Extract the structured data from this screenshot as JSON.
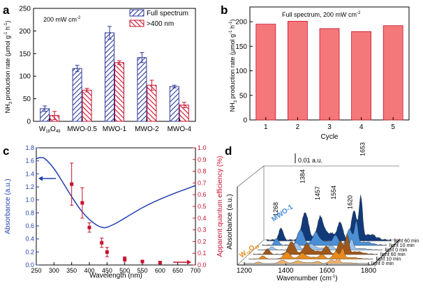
{
  "colors": {
    "blue": "#2b3a9c",
    "red": "#c8102e",
    "bar_salmon": "#f4787a",
    "curve_blue": "#1f3fb0",
    "orange": "#e98a1c",
    "brown": "#a0581a",
    "navy": "#123a7a",
    "lightblue": "#4a8fd6"
  },
  "chart_data": [
    {
      "panel": "a",
      "type": "bar",
      "categories": [
        "W18O49",
        "MWO-0.5",
        "MWO-1",
        "MWO-2",
        "MWO-4"
      ],
      "category_labels": [
        {
          "main": "W",
          "sub1": "18",
          "mid": "O",
          "sub2": "49"
        },
        {
          "main": "MWO-0.5"
        },
        {
          "main": "MWO-1"
        },
        {
          "main": "MWO-2"
        },
        {
          "main": "MWO-4"
        }
      ],
      "series": [
        {
          "name": "Full spectrum",
          "values": [
            28,
            117,
            196,
            141,
            77
          ],
          "errors": [
            6,
            7,
            14,
            11,
            3
          ]
        },
        {
          "name": ">400 nm",
          "values": [
            13,
            69,
            130,
            80,
            36
          ],
          "errors": [
            9,
            4,
            4,
            11,
            6
          ]
        }
      ],
      "annotation": "200 mW cm",
      "annotation_sup": "-2",
      "ylabel": "NH",
      "ylabel_sub": "3",
      "ylabel_rest": " production rate (μmol g",
      "ylabel_sup1": "-1",
      "ylabel_mid": " h",
      "ylabel_sup2": "-1",
      "ylabel_end": ")",
      "ylim": [
        0,
        250
      ],
      "yticks": [
        "0",
        "50",
        "100",
        "150",
        "200",
        "250"
      ]
    },
    {
      "panel": "b",
      "type": "bar",
      "categories": [
        "1",
        "2",
        "3",
        "4",
        "5"
      ],
      "values": [
        195,
        201,
        186,
        180,
        192
      ],
      "annotation": "Full spectrum, 200 mW cm",
      "annotation_sup": "-2",
      "xlabel": "Cycle",
      "ylabel": "NH",
      "ylabel_sub": "3",
      "ylabel_rest": " production rate (μmol g",
      "ylabel_sup1": "-1",
      "ylabel_mid": " h",
      "ylabel_sup2": "-1",
      "ylabel_end": ")",
      "ylim": [
        0,
        230
      ],
      "yticks": [
        "0",
        "50",
        "100",
        "150",
        "200"
      ]
    },
    {
      "panel": "c",
      "type": "line+scatter",
      "xlabel": "Wavelength (nm)",
      "ylabel_left": "Absorbance (a.u.)",
      "ylabel_right": "Apparent quantum efficiency (%)",
      "xlim": [
        250,
        700
      ],
      "ylim_left": [
        0,
        1.8
      ],
      "ylim_right": [
        0,
        1.0
      ],
      "xticks": [
        "250",
        "300",
        "350",
        "400",
        "450",
        "500",
        "550",
        "600",
        "650",
        "700"
      ],
      "yticks_left": [
        "0.0",
        "0.2",
        "0.4",
        "0.6",
        "0.8",
        "1.0",
        "1.2",
        "1.4",
        "1.6",
        "1.8"
      ],
      "yticks_right": [
        "0.0",
        "0.1",
        "0.2",
        "0.3",
        "0.4",
        "0.5",
        "0.6",
        "0.7",
        "0.8",
        "0.9",
        "1.0"
      ],
      "absorbance": {
        "x": [
          250,
          260,
          275,
          300,
          325,
          350,
          375,
          400,
          425,
          440,
          450,
          475,
          500,
          550,
          600,
          650,
          700
        ],
        "y": [
          1.63,
          1.65,
          1.63,
          1.48,
          1.27,
          1.05,
          0.85,
          0.7,
          0.6,
          0.575,
          0.58,
          0.64,
          0.72,
          0.88,
          1.01,
          1.12,
          1.22
        ]
      },
      "aqe": {
        "x": [
          350,
          380,
          400,
          435,
          450,
          500,
          550,
          600
        ],
        "y": [
          0.69,
          0.53,
          0.32,
          0.19,
          0.11,
          0.05,
          0.03,
          0.02
        ],
        "errors": [
          0.18,
          0.13,
          0.04,
          0.04,
          0.04,
          0.02,
          0.01,
          0.01
        ]
      }
    },
    {
      "panel": "d",
      "type": "waterfall",
      "xlabel": "Wavenumber (cm",
      "xlabel_sup": "-1",
      "xlabel_end": ")",
      "ylabel": "Absorbance (a.u.)",
      "xticks": [
        "1200",
        "1400",
        "1600",
        "1800"
      ],
      "scale_label": "0.01 a.u.",
      "peak_labels": [
        "1268",
        "1384",
        "1457",
        "1554",
        "1620",
        "1653"
      ],
      "sample_labels": [
        {
          "main": "MWO-1"
        },
        {
          "main": "W",
          "sub1": "18",
          "mid": "O",
          "sub2": "49"
        }
      ],
      "traces": [
        {
          "label": "light 0 min",
          "sample": "W18O49"
        },
        {
          "label": "light 10 min",
          "sample": "W18O49"
        },
        {
          "label": "light 60 min",
          "sample": "W18O49"
        },
        {
          "label": "light 0 min",
          "sample": "MWO-1"
        },
        {
          "label": "light 10 min",
          "sample": "MWO-1"
        },
        {
          "label": "light 60 min",
          "sample": "MWO-1"
        }
      ]
    }
  ],
  "panel_labels": [
    "a",
    "b",
    "c",
    "d"
  ]
}
